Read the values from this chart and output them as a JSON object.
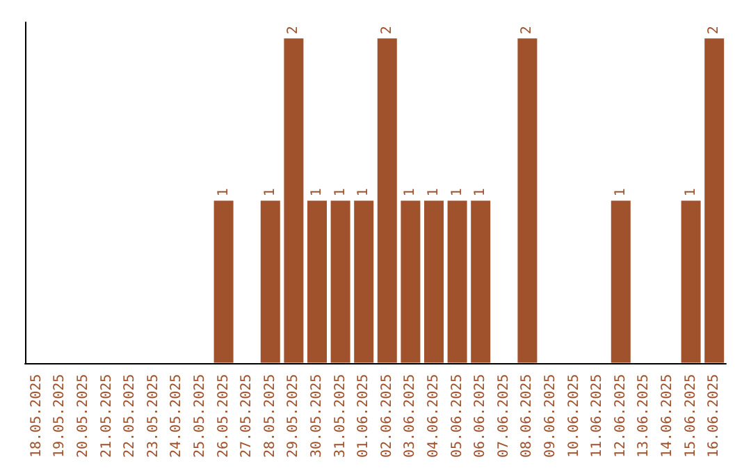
{
  "chart_data": {
    "type": "bar",
    "categories": [
      "18.05.2025",
      "19.05.2025",
      "20.05.2025",
      "21.05.2025",
      "22.05.2025",
      "23.05.2025",
      "24.05.2025",
      "25.05.2025",
      "26.05.2025",
      "27.05.2025",
      "28.05.2025",
      "29.05.2025",
      "30.05.2025",
      "31.05.2025",
      "01.06.2025",
      "02.06.2025",
      "03.06.2025",
      "04.06.2025",
      "05.06.2025",
      "06.06.2025",
      "07.06.2025",
      "08.06.2025",
      "09.06.2025",
      "10.06.2025",
      "11.06.2025",
      "12.06.2025",
      "13.06.2025",
      "14.06.2025",
      "15.06.2025",
      "16.06.2025"
    ],
    "values": [
      0,
      0,
      0,
      0,
      0,
      0,
      0,
      0,
      1,
      0,
      1,
      2,
      1,
      1,
      1,
      2,
      1,
      1,
      1,
      1,
      0,
      2,
      0,
      0,
      0,
      1,
      0,
      0,
      1,
      2
    ],
    "value_labels": [
      null,
      null,
      null,
      null,
      null,
      null,
      null,
      null,
      "1",
      null,
      "1",
      "2",
      "1",
      "1",
      "1",
      "2",
      "1",
      "1",
      "1",
      "1",
      null,
      "2",
      null,
      null,
      null,
      "1",
      null,
      null,
      "1",
      "2"
    ],
    "color": "#a0522d",
    "ylim": [
      0,
      2.1
    ],
    "tick_labels": "x",
    "grid": false
  }
}
